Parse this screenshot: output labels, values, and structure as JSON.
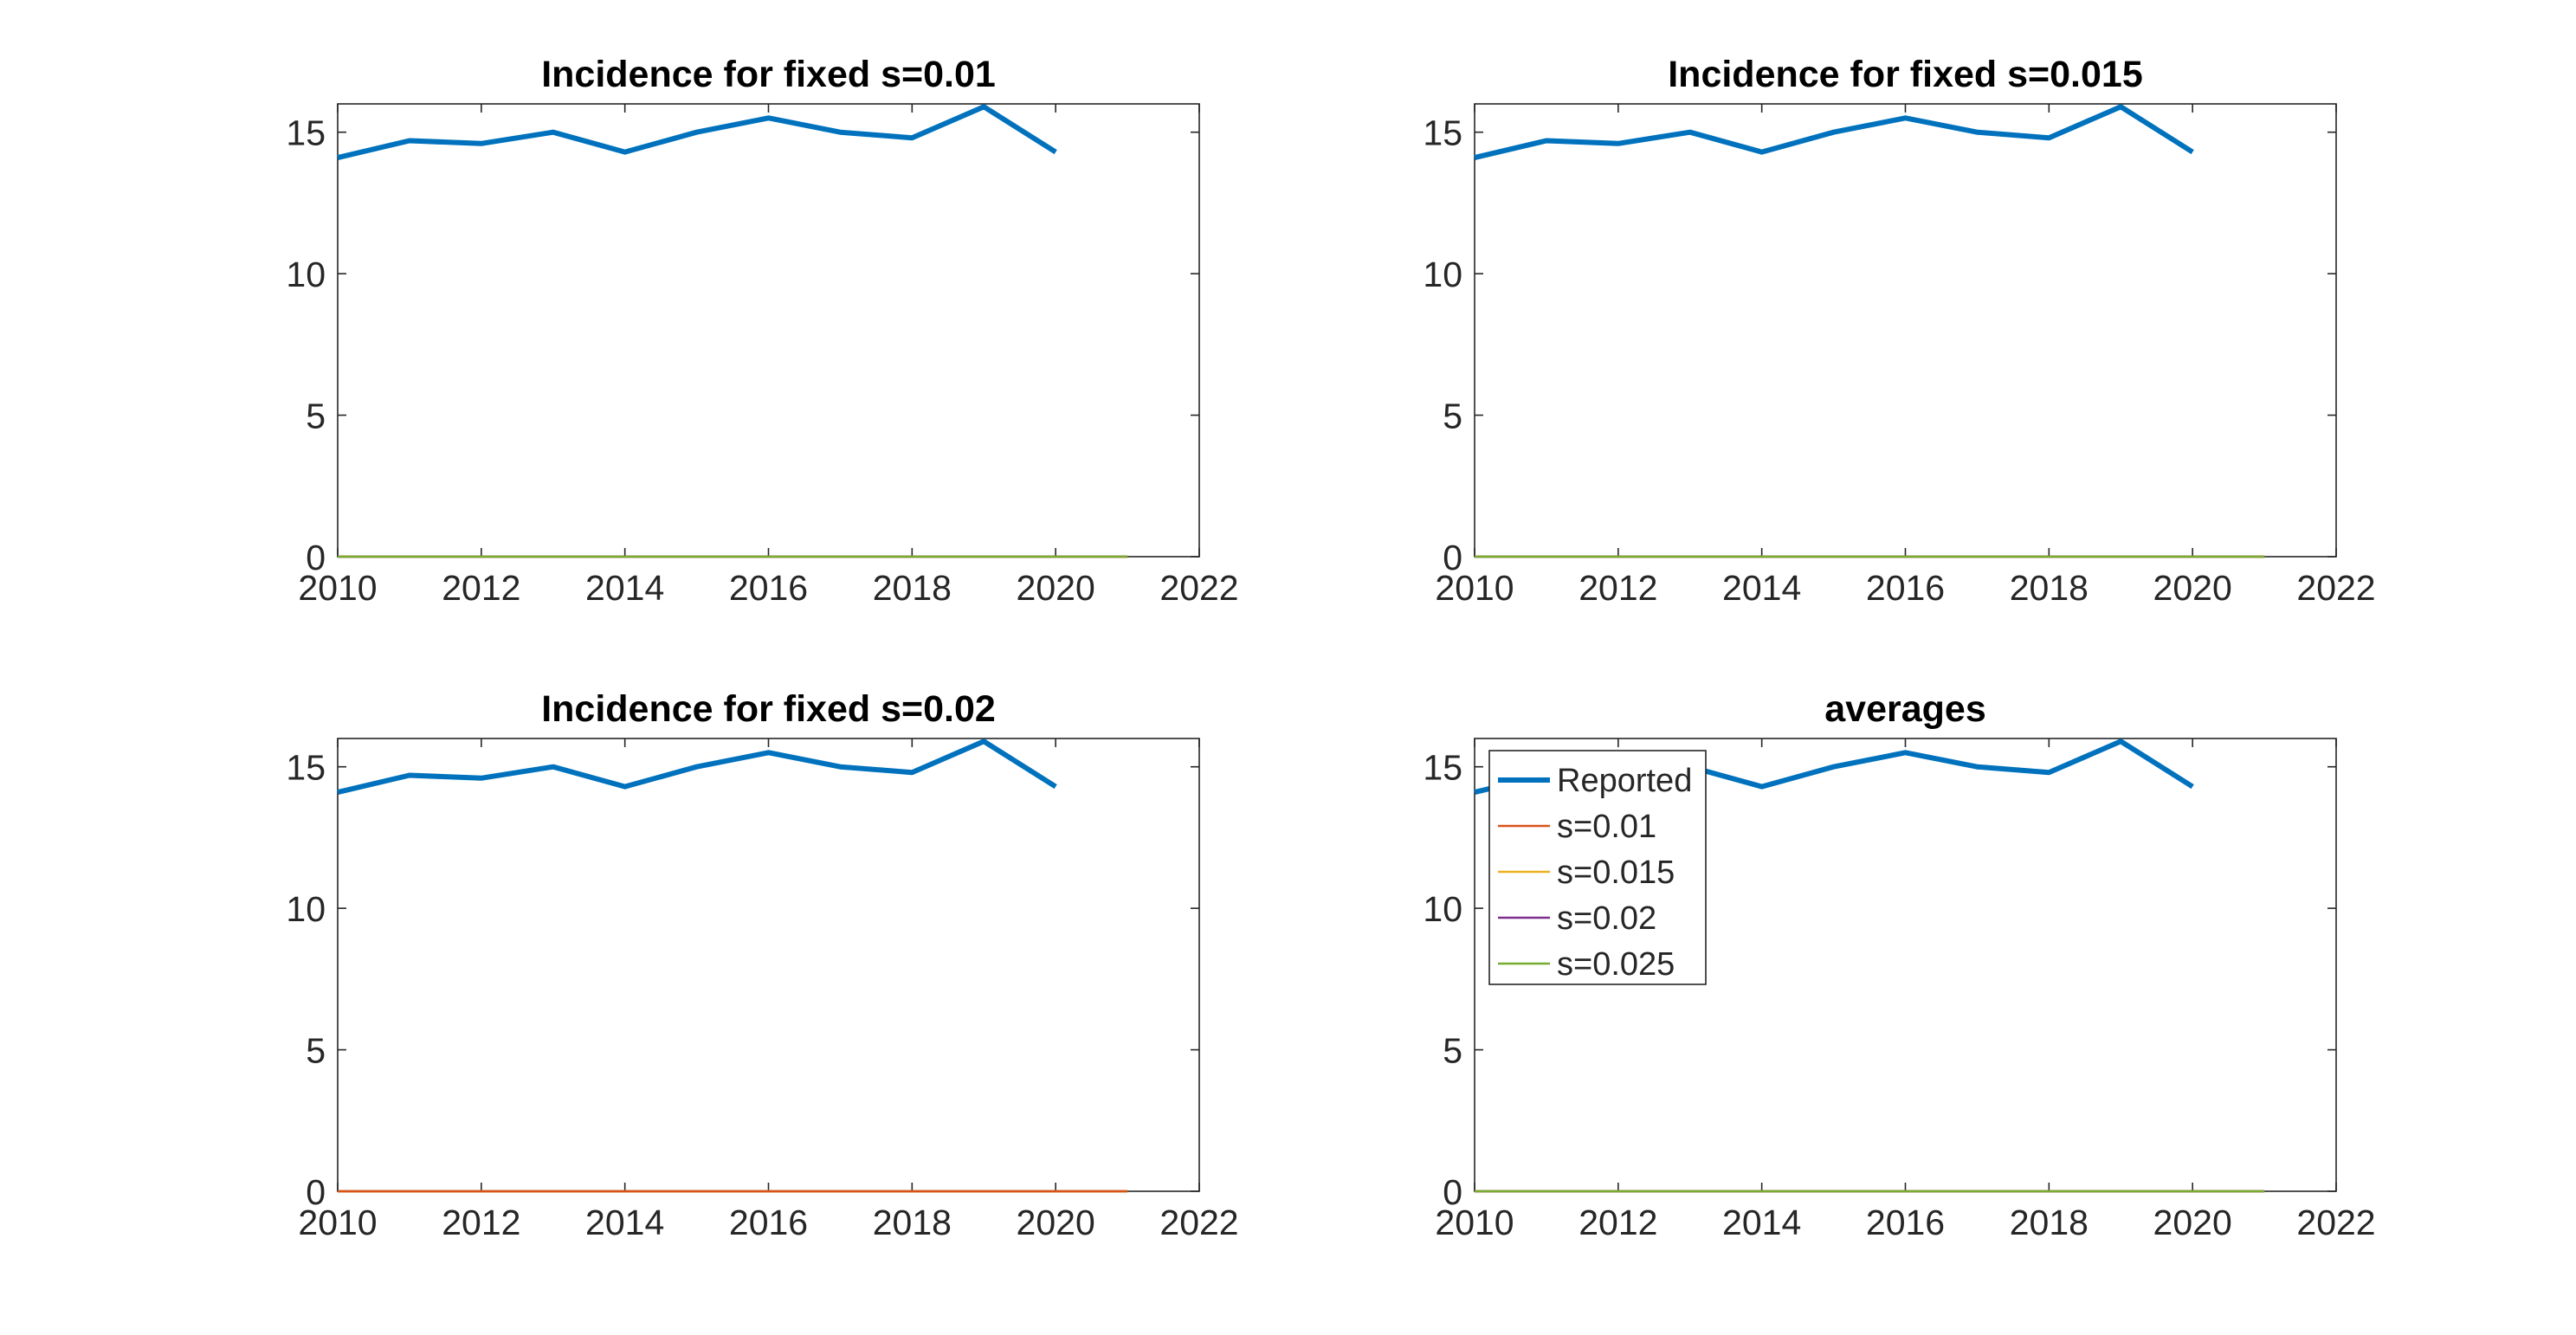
{
  "colors": {
    "background": "#ffffff",
    "axes": "#262626",
    "reported": "#0072BD",
    "s001": "#D95319",
    "s0015": "#EDB120",
    "s002": "#7E2F8E",
    "s0025": "#77AC30"
  },
  "chart_data": [
    {
      "type": "line",
      "title": "Incidence for fixed s=0.01",
      "xlim": [
        2010,
        2022
      ],
      "ylim": [
        0,
        16
      ],
      "xticks": [
        "2010",
        "2012",
        "2014",
        "2016",
        "2018",
        "2020",
        "2022"
      ],
      "yticks": [
        "0",
        "5",
        "10",
        "15"
      ],
      "grid": false,
      "legend": null,
      "series": [
        {
          "color": "#0072BD",
          "width": "thick",
          "x": [
            2010,
            2011,
            2012,
            2013,
            2014,
            2015,
            2016,
            2017,
            2018,
            2019,
            2020
          ],
          "y": [
            14.1,
            14.7,
            14.6,
            15.0,
            14.3,
            15.0,
            15.5,
            15.0,
            14.8,
            15.9,
            14.3
          ]
        },
        {
          "color": "#D95319",
          "width": "thin",
          "x": [
            2010,
            2021
          ],
          "y": [
            0,
            0
          ]
        },
        {
          "color": "#EDB120",
          "width": "thin",
          "x": [
            2010,
            2021
          ],
          "y": [
            0,
            0
          ]
        },
        {
          "color": "#7E2F8E",
          "width": "thin",
          "x": [
            2010,
            2021
          ],
          "y": [
            0,
            0
          ]
        },
        {
          "color": "#77AC30",
          "width": "thin",
          "x": [
            2010,
            2021
          ],
          "y": [
            0,
            0
          ]
        }
      ]
    },
    {
      "type": "line",
      "title": "Incidence for fixed s=0.015",
      "xlim": [
        2010,
        2022
      ],
      "ylim": [
        0,
        16
      ],
      "xticks": [
        "2010",
        "2012",
        "2014",
        "2016",
        "2018",
        "2020",
        "2022"
      ],
      "yticks": [
        "0",
        "5",
        "10",
        "15"
      ],
      "grid": false,
      "legend": null,
      "series": [
        {
          "color": "#0072BD",
          "width": "thick",
          "x": [
            2010,
            2011,
            2012,
            2013,
            2014,
            2015,
            2016,
            2017,
            2018,
            2019,
            2020
          ],
          "y": [
            14.1,
            14.7,
            14.6,
            15.0,
            14.3,
            15.0,
            15.5,
            15.0,
            14.8,
            15.9,
            14.3
          ]
        },
        {
          "color": "#D95319",
          "width": "thin",
          "x": [
            2010,
            2021
          ],
          "y": [
            0,
            0
          ]
        },
        {
          "color": "#EDB120",
          "width": "thin",
          "x": [
            2010,
            2021
          ],
          "y": [
            0,
            0
          ]
        },
        {
          "color": "#7E2F8E",
          "width": "thin",
          "x": [
            2010,
            2021
          ],
          "y": [
            0,
            0
          ]
        },
        {
          "color": "#77AC30",
          "width": "thin",
          "x": [
            2010,
            2021
          ],
          "y": [
            0,
            0
          ]
        }
      ]
    },
    {
      "type": "line",
      "title": "Incidence for fixed s=0.02",
      "xlim": [
        2010,
        2022
      ],
      "ylim": [
        0,
        16
      ],
      "xticks": [
        "2010",
        "2012",
        "2014",
        "2016",
        "2018",
        "2020",
        "2022"
      ],
      "yticks": [
        "0",
        "5",
        "10",
        "15"
      ],
      "grid": false,
      "legend": null,
      "series": [
        {
          "color": "#0072BD",
          "width": "thick",
          "x": [
            2010,
            2011,
            2012,
            2013,
            2014,
            2015,
            2016,
            2017,
            2018,
            2019,
            2020
          ],
          "y": [
            14.1,
            14.7,
            14.6,
            15.0,
            14.3,
            15.0,
            15.5,
            15.0,
            14.8,
            15.9,
            14.3
          ]
        },
        {
          "color": "#77AC30",
          "width": "thin",
          "x": [
            2010,
            2021
          ],
          "y": [
            0,
            0
          ]
        },
        {
          "color": "#7E2F8E",
          "width": "thin",
          "x": [
            2010,
            2021
          ],
          "y": [
            0,
            0
          ]
        },
        {
          "color": "#EDB120",
          "width": "thin",
          "x": [
            2010,
            2021
          ],
          "y": [
            0,
            0
          ]
        },
        {
          "color": "#D95319",
          "width": "thin",
          "x": [
            2010,
            2021
          ],
          "y": [
            0,
            0
          ]
        }
      ]
    },
    {
      "type": "line",
      "title": "averages",
      "xlim": [
        2010,
        2022
      ],
      "ylim": [
        0,
        16
      ],
      "xticks": [
        "2010",
        "2012",
        "2014",
        "2016",
        "2018",
        "2020",
        "2022"
      ],
      "yticks": [
        "0",
        "5",
        "10",
        "15"
      ],
      "grid": false,
      "legend": "top-left",
      "series": [
        {
          "name": "Reported",
          "color": "#0072BD",
          "width": "thick",
          "x": [
            2010,
            2011,
            2012,
            2013,
            2014,
            2015,
            2016,
            2017,
            2018,
            2019,
            2020
          ],
          "y": [
            14.1,
            14.7,
            14.6,
            15.0,
            14.3,
            15.0,
            15.5,
            15.0,
            14.8,
            15.9,
            14.3
          ]
        },
        {
          "name": "s=0.01",
          "color": "#D95319",
          "width": "thin",
          "x": [
            2010,
            2021
          ],
          "y": [
            0,
            0
          ]
        },
        {
          "name": "s=0.015",
          "color": "#EDB120",
          "width": "thin",
          "x": [
            2010,
            2021
          ],
          "y": [
            0,
            0
          ]
        },
        {
          "name": "s=0.02",
          "color": "#7E2F8E",
          "width": "thin",
          "x": [
            2010,
            2021
          ],
          "y": [
            0,
            0
          ]
        },
        {
          "name": "s=0.025",
          "color": "#77AC30",
          "width": "thin",
          "x": [
            2010,
            2021
          ],
          "y": [
            0,
            0
          ]
        }
      ]
    }
  ]
}
